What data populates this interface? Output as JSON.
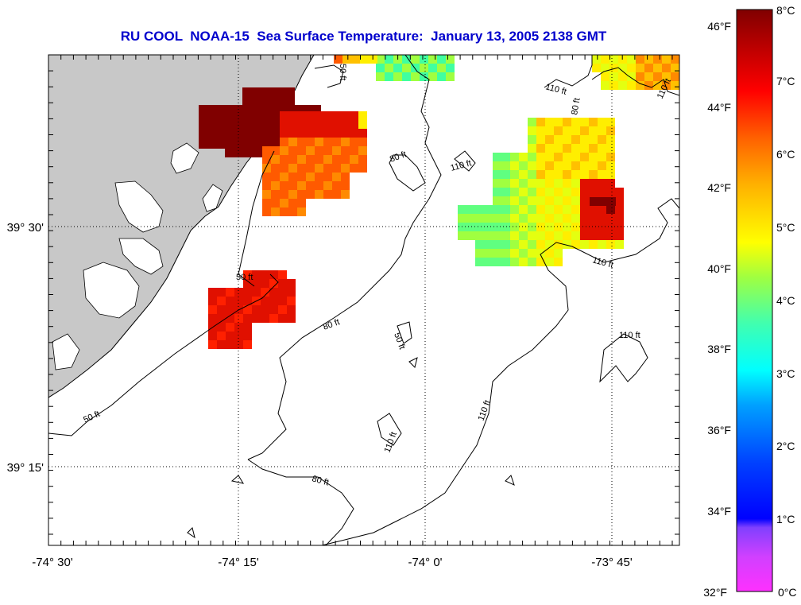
{
  "title": "RU COOL  NOAA-15  Sea Surface Temperature:  January 13, 2005 2138 GMT",
  "lon_labels": [
    "-74° 30'",
    "-74° 15'",
    "-74° 0'",
    "-73° 45'"
  ],
  "lat_labels": [
    "39° 30'",
    "39° 15'"
  ],
  "contour_labels": [
    "50 ft",
    "80 ft",
    "110 ft"
  ],
  "colorbar": {
    "f_labels": [
      "46°F",
      "44°F",
      "42°F",
      "40°F",
      "38°F",
      "36°F",
      "34°F",
      "32°F"
    ],
    "c_labels": [
      "8°C",
      "7°C",
      "6°C",
      "5°C",
      "4°C",
      "3°C",
      "2°C",
      "1°C",
      "0°C"
    ],
    "colors": [
      "#ff00ff",
      "#8000ff",
      "#0000ff",
      "#00c0ff",
      "#00ffff",
      "#40ff80",
      "#ffff00",
      "#ff8000",
      "#ff0000",
      "#800000"
    ]
  },
  "colors": {
    "land": "#c8c8c8",
    "title": "#0000cc"
  }
}
